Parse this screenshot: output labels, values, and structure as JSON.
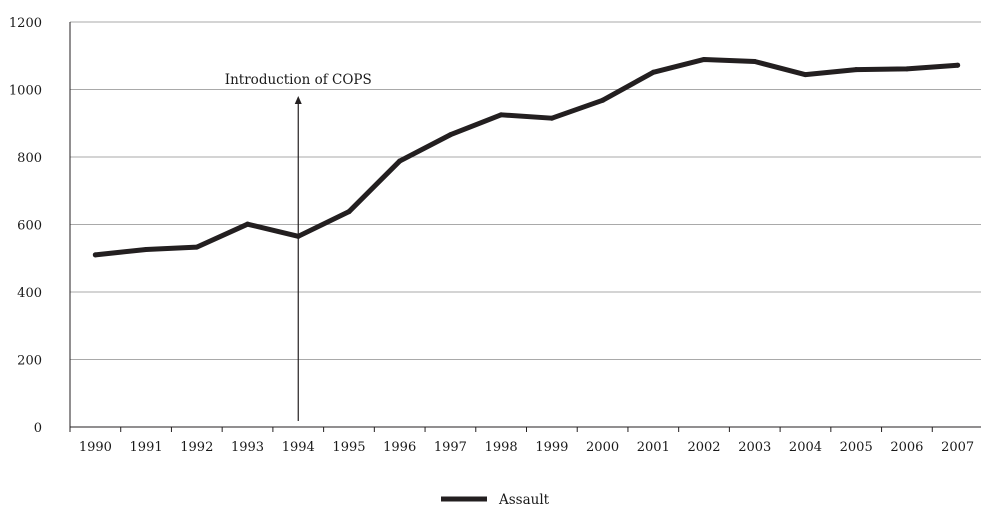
{
  "chart_data": {
    "type": "line",
    "title": "",
    "xlabel": "",
    "ylabel": "",
    "x": [
      "1990",
      "1991",
      "1992",
      "1993",
      "1994",
      "1995",
      "1996",
      "1997",
      "1998",
      "1999",
      "2000",
      "2001",
      "2002",
      "2003",
      "2004",
      "2005",
      "2006",
      "2007"
    ],
    "series": [
      {
        "name": "Assault",
        "values": [
          510,
          526,
          533,
          601,
          565,
          638,
          788,
          866,
          925,
          915,
          968,
          1051,
          1089,
          1083,
          1044,
          1059,
          1061,
          1072
        ],
        "color": "#231f20"
      }
    ],
    "ylim": [
      0,
      1200
    ],
    "yticks": [
      0,
      200,
      400,
      600,
      800,
      1000,
      1200
    ],
    "grid": "horizontal",
    "legend": "bottom-center",
    "annotation": {
      "text": "Introduction of COPS",
      "x": "1994",
      "arrow": "up"
    }
  }
}
